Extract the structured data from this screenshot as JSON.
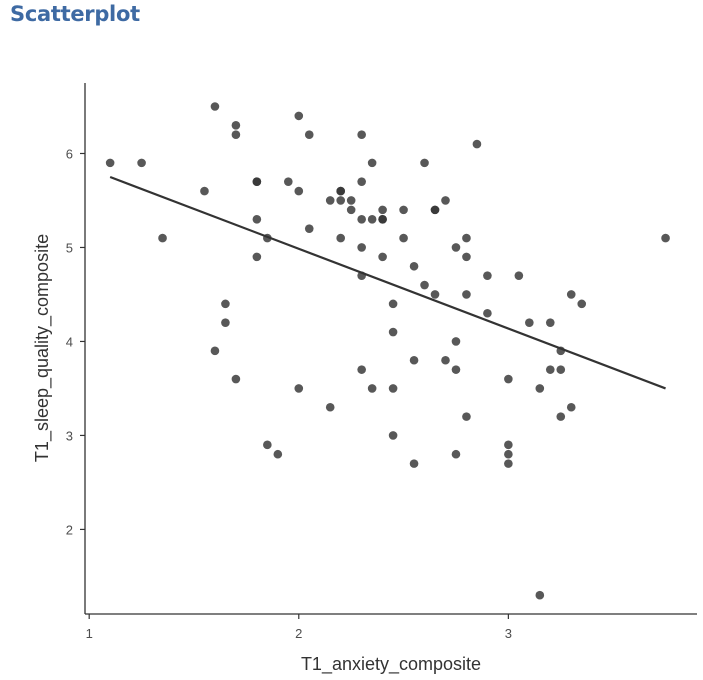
{
  "page": {
    "title": "Scatterplot"
  },
  "chart_data": {
    "type": "scatter",
    "title": "",
    "xlabel": "T1_anxiety_composite",
    "ylabel": "T1_sleep_quality_composite",
    "xlim": [
      0.98,
      3.9
    ],
    "ylim": [
      1.1,
      6.75
    ],
    "xticks": [
      1,
      2,
      3
    ],
    "yticks": [
      2,
      3,
      4,
      5,
      6
    ],
    "grid": false,
    "legend": "none",
    "colors": {
      "points": "#333333",
      "fit_line": "#333333",
      "axis": "#333333",
      "title": "#3e6aa3"
    },
    "fit_line": {
      "x": [
        1.1,
        3.75
      ],
      "y": [
        5.75,
        3.5
      ]
    },
    "points": [
      {
        "x": 1.1,
        "y": 5.9
      },
      {
        "x": 1.25,
        "y": 5.9
      },
      {
        "x": 1.35,
        "y": 5.1
      },
      {
        "x": 1.55,
        "y": 5.6
      },
      {
        "x": 1.6,
        "y": 6.5
      },
      {
        "x": 1.6,
        "y": 3.9
      },
      {
        "x": 1.65,
        "y": 4.4
      },
      {
        "x": 1.65,
        "y": 4.2
      },
      {
        "x": 1.7,
        "y": 6.3
      },
      {
        "x": 1.7,
        "y": 6.2
      },
      {
        "x": 1.7,
        "y": 3.6
      },
      {
        "x": 1.8,
        "y": 5.7
      },
      {
        "x": 1.8,
        "y": 5.7
      },
      {
        "x": 1.8,
        "y": 5.3
      },
      {
        "x": 1.8,
        "y": 4.9
      },
      {
        "x": 1.85,
        "y": 5.1
      },
      {
        "x": 1.85,
        "y": 2.9
      },
      {
        "x": 1.9,
        "y": 2.8
      },
      {
        "x": 1.95,
        "y": 5.7
      },
      {
        "x": 2.0,
        "y": 6.4
      },
      {
        "x": 2.0,
        "y": 5.6
      },
      {
        "x": 2.0,
        "y": 3.5
      },
      {
        "x": 2.05,
        "y": 6.2
      },
      {
        "x": 2.05,
        "y": 5.2
      },
      {
        "x": 2.15,
        "y": 5.5
      },
      {
        "x": 2.15,
        "y": 3.3
      },
      {
        "x": 2.2,
        "y": 5.6
      },
      {
        "x": 2.2,
        "y": 5.6
      },
      {
        "x": 2.2,
        "y": 5.5
      },
      {
        "x": 2.2,
        "y": 5.1
      },
      {
        "x": 2.25,
        "y": 5.5
      },
      {
        "x": 2.25,
        "y": 5.4
      },
      {
        "x": 2.3,
        "y": 6.2
      },
      {
        "x": 2.3,
        "y": 5.7
      },
      {
        "x": 2.3,
        "y": 5.3
      },
      {
        "x": 2.3,
        "y": 5.0
      },
      {
        "x": 2.3,
        "y": 4.7
      },
      {
        "x": 2.3,
        "y": 3.7
      },
      {
        "x": 2.35,
        "y": 5.9
      },
      {
        "x": 2.35,
        "y": 5.3
      },
      {
        "x": 2.35,
        "y": 3.5
      },
      {
        "x": 2.4,
        "y": 5.4
      },
      {
        "x": 2.4,
        "y": 5.3
      },
      {
        "x": 2.4,
        "y": 5.3
      },
      {
        "x": 2.4,
        "y": 4.9
      },
      {
        "x": 2.45,
        "y": 4.4
      },
      {
        "x": 2.45,
        "y": 4.1
      },
      {
        "x": 2.45,
        "y": 3.5
      },
      {
        "x": 2.45,
        "y": 3.0
      },
      {
        "x": 2.5,
        "y": 5.4
      },
      {
        "x": 2.5,
        "y": 5.1
      },
      {
        "x": 2.55,
        "y": 4.8
      },
      {
        "x": 2.55,
        "y": 3.8
      },
      {
        "x": 2.55,
        "y": 2.7
      },
      {
        "x": 2.6,
        "y": 5.9
      },
      {
        "x": 2.6,
        "y": 4.6
      },
      {
        "x": 2.65,
        "y": 5.4
      },
      {
        "x": 2.65,
        "y": 5.4
      },
      {
        "x": 2.65,
        "y": 4.5
      },
      {
        "x": 2.7,
        "y": 5.5
      },
      {
        "x": 2.7,
        "y": 3.8
      },
      {
        "x": 2.75,
        "y": 5.0
      },
      {
        "x": 2.75,
        "y": 4.0
      },
      {
        "x": 2.75,
        "y": 3.7
      },
      {
        "x": 2.75,
        "y": 2.8
      },
      {
        "x": 2.8,
        "y": 5.1
      },
      {
        "x": 2.8,
        "y": 4.9
      },
      {
        "x": 2.8,
        "y": 4.5
      },
      {
        "x": 2.8,
        "y": 3.2
      },
      {
        "x": 2.85,
        "y": 6.1
      },
      {
        "x": 2.9,
        "y": 4.7
      },
      {
        "x": 2.9,
        "y": 4.3
      },
      {
        "x": 3.0,
        "y": 3.6
      },
      {
        "x": 3.0,
        "y": 2.9
      },
      {
        "x": 3.0,
        "y": 2.8
      },
      {
        "x": 3.0,
        "y": 2.7
      },
      {
        "x": 3.05,
        "y": 4.7
      },
      {
        "x": 3.1,
        "y": 4.2
      },
      {
        "x": 3.15,
        "y": 3.5
      },
      {
        "x": 3.15,
        "y": 1.3
      },
      {
        "x": 3.2,
        "y": 4.2
      },
      {
        "x": 3.2,
        "y": 3.7
      },
      {
        "x": 3.25,
        "y": 3.9
      },
      {
        "x": 3.25,
        "y": 3.7
      },
      {
        "x": 3.25,
        "y": 3.2
      },
      {
        "x": 3.3,
        "y": 4.5
      },
      {
        "x": 3.3,
        "y": 3.3
      },
      {
        "x": 3.35,
        "y": 4.4
      },
      {
        "x": 3.75,
        "y": 5.1
      }
    ]
  }
}
